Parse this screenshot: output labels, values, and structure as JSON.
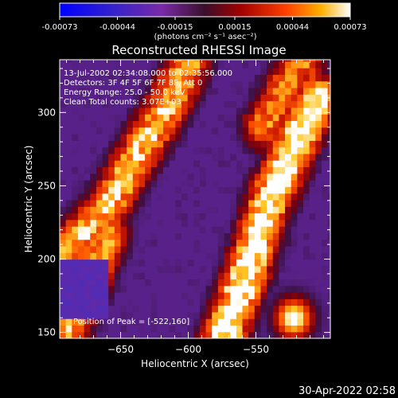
{
  "chart_data": {
    "type": "heatmap",
    "title": "Reconstructed RHESSI Image",
    "colorbar": {
      "ticks": [
        "-0.00073",
        "-0.00044",
        "-0.00015",
        "0.00015",
        "0.00044",
        "0.00073"
      ],
      "range": [
        -0.00073,
        0.00073
      ],
      "unit_label": "(photons cm⁻² s⁻¹ asec⁻²)"
    },
    "xlabel": "Heliocentric X (arcsec)",
    "ylabel": "Heliocentric Y (arcsec)",
    "xlim": [
      -695,
      -495
    ],
    "ylim": [
      146,
      336
    ],
    "xticks": [
      -650,
      -600,
      -550
    ],
    "xtick_labels": [
      "−650",
      "−600",
      "−550"
    ],
    "yticks": [
      150,
      200,
      250,
      300
    ],
    "ytick_labels": [
      "150",
      "200",
      "250",
      "300"
    ],
    "annotations": [
      "13-Jul-2002 02:34:08.000 to 02:35:56.000",
      "Detectors: 3F 4F 5F 6F 7F 8F, Att 0",
      "Energy Range: 25.0 - 50.0 keV",
      "Clean    Total counts: 3.07E+03"
    ],
    "peak_label": "Position of Peak = [-522,160]",
    "peak": [
      -522,
      160
    ],
    "ridges": [
      {
        "path": [
          [
            -690,
            205
          ],
          [
            -660,
            235
          ],
          [
            -635,
            275
          ],
          [
            -615,
            305
          ],
          [
            -600,
            335
          ]
        ],
        "intensity": 0.62
      },
      {
        "path": [
          [
            -575,
            145
          ],
          [
            -555,
            195
          ],
          [
            -540,
            240
          ],
          [
            -520,
            280
          ],
          [
            -505,
            310
          ]
        ],
        "intensity": 0.78
      },
      {
        "path": [
          [
            -690,
            150
          ],
          [
            -675,
            180
          ],
          [
            -660,
            215
          ]
        ],
        "intensity": 0.55
      },
      {
        "path": [
          [
            -545,
            290
          ],
          [
            -530,
            315
          ],
          [
            -515,
            336
          ]
        ],
        "intensity": 0.5
      }
    ],
    "colors": [
      "#0000ff",
      "#4b1fa0",
      "#6a2aa6",
      "#3a0f3a",
      "#8b0000",
      "#d41c00",
      "#ff6a00",
      "#ffc020",
      "#ffffff"
    ]
  },
  "footer": {
    "timestamp": "30-Apr-2022 02:58"
  }
}
